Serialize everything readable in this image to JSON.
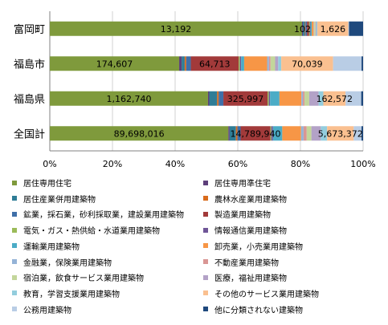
{
  "chart_data": {
    "type": "bar",
    "orientation": "horizontal",
    "stacked": "percent",
    "categories": [
      "富岡町",
      "福島市",
      "福島県",
      "全国計"
    ],
    "xlim": [
      0,
      100
    ],
    "xticks": [
      "0%",
      "20%",
      "40%",
      "60%",
      "80%",
      "100%"
    ],
    "grid": "vertical",
    "legend_position": "bottom",
    "series": [
      {
        "name": "居住専用住宅",
        "color": "#7f9a3c",
        "values": [
          80.5,
          42.2,
          50.5,
          57.0
        ]
      },
      {
        "name": "居住専用準住宅",
        "color": "#5d3f7a",
        "values": [
          0.3,
          0.8,
          0.4,
          0.4
        ]
      },
      {
        "name": "居住産業併用建築物",
        "color": "#2f7d96",
        "values": [
          0.6,
          1.0,
          2.5,
          2.0
        ]
      },
      {
        "name": "農林水産業用建築物",
        "color": "#d96b1c",
        "values": [
          0.2,
          0.5,
          0.5,
          0.5
        ]
      },
      {
        "name": "鉱業，採石業，砂利採取業，建設業用建築物",
        "color": "#3f6fa8",
        "values": [
          0.5,
          1.5,
          1.5,
          1.0
        ]
      },
      {
        "name": "製造業用建築物",
        "color": "#a23a3a",
        "values": [
          0.6,
          15.6,
          14.1,
          9.5
        ]
      },
      {
        "name": "電気・ガス・熱供給・水道業用建築物",
        "color": "#9bbb59",
        "values": [
          0.3,
          0.4,
          0.4,
          0.3
        ]
      },
      {
        "name": "情報通信業用建築物",
        "color": "#6f5597",
        "values": [
          0.2,
          0.4,
          0.4,
          0.5
        ]
      },
      {
        "name": "運輸業用建築物",
        "color": "#4bacc6",
        "values": [
          0.4,
          1.0,
          3.0,
          3.0
        ]
      },
      {
        "name": "卸売業，小売業用建築物",
        "color": "#f79646",
        "values": [
          0.6,
          7.5,
          7.0,
          6.0
        ]
      },
      {
        "name": "金融業，保険業用建築物",
        "color": "#95b3d7",
        "values": [
          0.1,
          0.6,
          0.5,
          0.8
        ]
      },
      {
        "name": "不動産業用建築物",
        "color": "#d99694",
        "values": [
          0.1,
          0.5,
          0.5,
          1.0
        ]
      },
      {
        "name": "宿泊業，飲食サービス業用建築物",
        "color": "#c3d69b",
        "values": [
          0.4,
          1.5,
          1.5,
          1.5
        ]
      },
      {
        "name": "医療，福祉用建築物",
        "color": "#b3a2c7",
        "values": [
          0.3,
          1.0,
          3.0,
          3.0
        ]
      },
      {
        "name": "教育，学習支援業用建築物",
        "color": "#93cddd",
        "values": [
          0.3,
          1.0,
          1.5,
          2.0
        ]
      },
      {
        "name": "その他のサービス業用建築物",
        "color": "#fac090",
        "values": [
          9.9,
          16.9,
          7.1,
          8.5
        ]
      },
      {
        "name": "公務用建築物",
        "color": "#b9cde5",
        "values": [
          0.2,
          9.3,
          5.0,
          2.5
        ]
      },
      {
        "name": "他に分類されない建築物",
        "color": "#1f497d",
        "values": [
          4.5,
          0.5,
          0.6,
          0.5
        ]
      }
    ],
    "data_labels": [
      {
        "category": "富岡町",
        "series": "居住専用住宅",
        "text": "13,192"
      },
      {
        "category": "富岡町",
        "series": "居住専用準住宅",
        "text": "102"
      },
      {
        "category": "富岡町",
        "series": "その他のサービス業用建築物",
        "text": "1,626"
      },
      {
        "category": "福島市",
        "series": "居住専用住宅",
        "text": "174,607"
      },
      {
        "category": "福島市",
        "series": "製造業用建築物",
        "text": "64,713"
      },
      {
        "category": "福島市",
        "series": "その他のサービス業用建築物",
        "text": "70,039"
      },
      {
        "category": "福島県",
        "series": "居住専用住宅",
        "text": "1,162,740"
      },
      {
        "category": "福島県",
        "series": "製造業用建築物",
        "text": "325,997"
      },
      {
        "category": "福島県",
        "series": "その他のサービス業用建築物",
        "text": "162,572"
      },
      {
        "category": "全国計",
        "series": "居住専用住宅",
        "text": "89,698,016"
      },
      {
        "category": "全国計",
        "series": "製造業用建築物",
        "text": "14,789,940"
      },
      {
        "category": "全国計",
        "series": "その他のサービス業用建築物",
        "text": "5,673,372"
      }
    ]
  }
}
